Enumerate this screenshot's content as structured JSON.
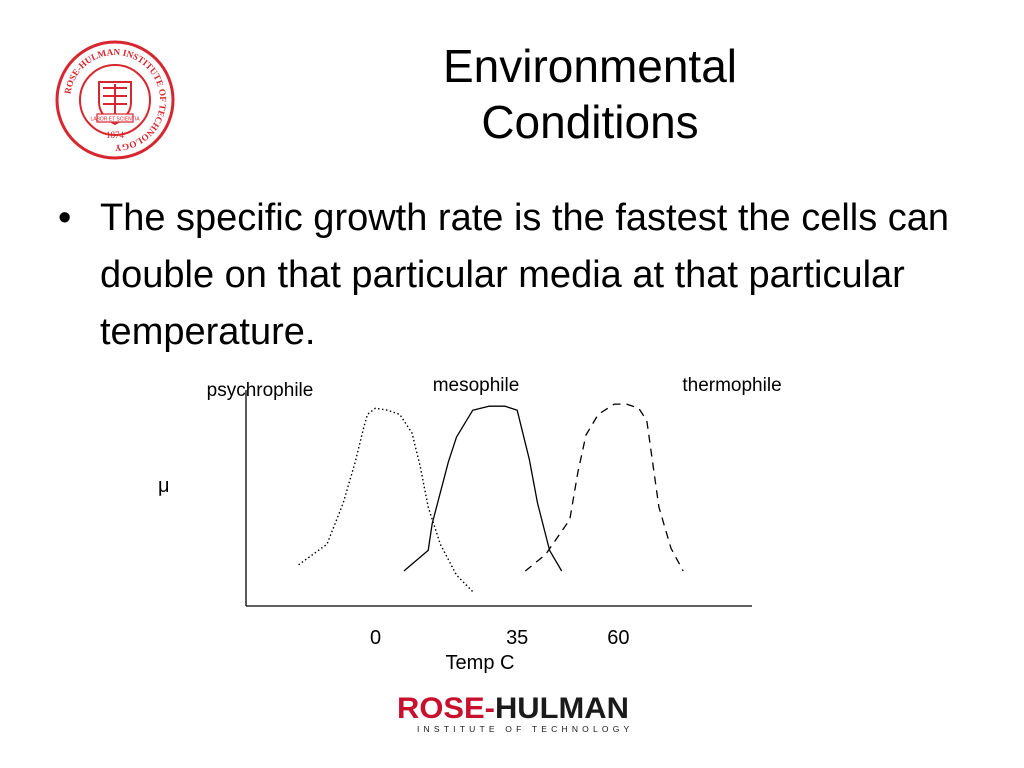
{
  "slide": {
    "title_line1": "Environmental",
    "title_line2": "Conditions",
    "bullet_symbol": "•",
    "bullet_text": "The specific growth rate is the fastest the cells can double on that particular media at that particular temperature."
  },
  "seal": {
    "icon": "rose-hulman-seal-icon",
    "text": "ROSE-HULMAN INSTITUTE OF TECHNOLOGY",
    "year": "1874",
    "motto": "LABOR ET SCIENTIA",
    "color": "#d8262e"
  },
  "chart_data": {
    "type": "line",
    "title": "",
    "xlabel": "Temp C",
    "ylabel": "μ",
    "x_ticks": [
      {
        "value": 0,
        "label": "0"
      },
      {
        "value": 35,
        "label": "35"
      },
      {
        "value": 60,
        "label": "60"
      }
    ],
    "xlim": [
      -32,
      93
    ],
    "ylim": [
      0,
      1
    ],
    "grid": false,
    "series": [
      {
        "name": "psychrophile",
        "style": "dotted",
        "x": [
          -19,
          -12,
          -8,
          -5,
          -3,
          -2,
          0,
          3,
          6,
          9,
          11,
          13,
          16,
          20,
          24
        ],
        "y": [
          0.2,
          0.3,
          0.5,
          0.7,
          0.86,
          0.93,
          0.96,
          0.95,
          0.93,
          0.84,
          0.68,
          0.48,
          0.3,
          0.15,
          0.07
        ]
      },
      {
        "name": "mesophile",
        "style": "solid",
        "x": [
          7,
          13,
          14,
          18,
          20,
          24,
          28,
          32,
          35,
          38,
          40,
          43,
          46
        ],
        "y": [
          0.17,
          0.27,
          0.4,
          0.7,
          0.82,
          0.95,
          0.97,
          0.97,
          0.95,
          0.71,
          0.5,
          0.27,
          0.17
        ]
      },
      {
        "name": "thermophile",
        "style": "dashed",
        "x": [
          37,
          42,
          48,
          50,
          52,
          55,
          59,
          62,
          65,
          67,
          70,
          73,
          76
        ],
        "y": [
          0.17,
          0.25,
          0.42,
          0.65,
          0.83,
          0.93,
          0.98,
          0.98,
          0.96,
          0.9,
          0.48,
          0.28,
          0.17
        ]
      }
    ]
  },
  "logo": {
    "name": "ROSE-HULMAN",
    "tagline": "INSTITUTE OF TECHNOLOGY",
    "rose_color": "#c8102e",
    "hulman_color": "#1a1a1a"
  }
}
